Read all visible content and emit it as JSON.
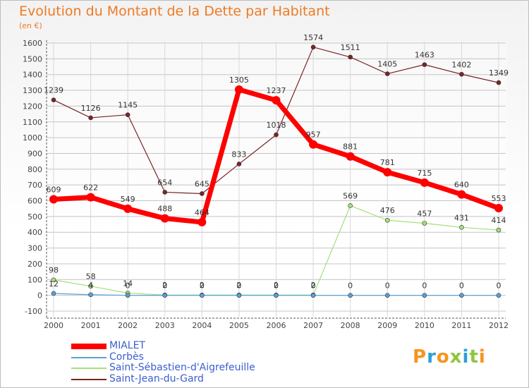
{
  "title": "Evolution du Montant de la Dette par Habitant",
  "subtitle": "(en €)",
  "logo": {
    "text": "Proxiti",
    "colors": [
      "#f7941d",
      "#2aa0d8",
      "#f7941d",
      "#8dc63f",
      "#2aa0d8",
      "#8dc63f",
      "#f7941d"
    ]
  },
  "chart_data": {
    "type": "line",
    "x": [
      "2000",
      "2001",
      "2002",
      "2003",
      "2004",
      "2005",
      "2006",
      "2007",
      "2008",
      "2009",
      "2010",
      "2011",
      "2012"
    ],
    "ylim": [
      -100,
      1600
    ],
    "yticks": [
      -100,
      0,
      100,
      200,
      300,
      400,
      500,
      600,
      700,
      800,
      900,
      1000,
      1100,
      1200,
      1300,
      1400,
      1500,
      1600
    ],
    "grid": true,
    "legend_position": "bottom-left",
    "series": [
      {
        "name": "MIALET",
        "color": "#ff0000",
        "values": [
          609,
          622,
          549,
          488,
          464,
          1305,
          1237,
          957,
          881,
          781,
          715,
          640,
          553
        ]
      },
      {
        "name": "Corbès",
        "color": "#5ba1d8",
        "values": [
          12,
          4,
          0,
          0,
          0,
          0,
          0,
          0,
          0,
          0,
          0,
          0,
          0
        ]
      },
      {
        "name": "Saint-Sébastien-d'Aigrefeuille",
        "color": "#a5e07a",
        "values": [
          98,
          58,
          14,
          2,
          2,
          2,
          2,
          2,
          569,
          476,
          457,
          431,
          414
        ]
      },
      {
        "name": "Saint-Jean-du-Gard",
        "color": "#7a2424",
        "values": [
          1239,
          1126,
          1145,
          654,
          645,
          833,
          1018,
          1574,
          1511,
          1405,
          1463,
          1402,
          1349
        ]
      }
    ]
  }
}
